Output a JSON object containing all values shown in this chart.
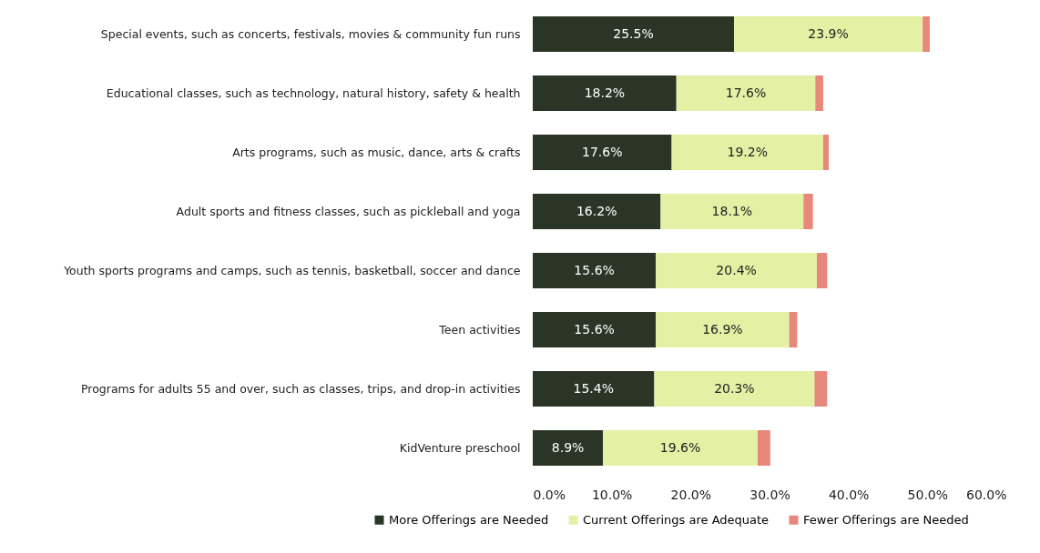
{
  "chart_data": {
    "type": "bar",
    "orientation": "horizontal",
    "stacked": true,
    "categories": [
      "Special events, such as concerts, festivals, movies & community fun runs",
      "Educational classes, such as technology, natural history, safety & health",
      "Arts programs, such as music, dance, arts & crafts",
      "Adult sports and fitness classes, such as pickleball and yoga",
      "Youth sports programs and camps, such as tennis, basketball, soccer and dance",
      "Teen activities",
      "Programs for adults 55 and over, such as classes, trips, and drop-in activities",
      "KidVenture preschool"
    ],
    "series": [
      {
        "name": "More Offerings are Needed",
        "color": "#2b3526",
        "values": [
          25.5,
          18.2,
          17.6,
          16.2,
          15.6,
          15.6,
          15.4,
          8.9
        ],
        "value_labels": [
          "25.5%",
          "18.2%",
          "17.6%",
          "16.2%",
          "15.6%",
          "15.6%",
          "15.4%",
          "8.9%"
        ]
      },
      {
        "name": "Current Offerings are Adequate",
        "color": "#e4f0a4",
        "values": [
          23.9,
          17.6,
          19.2,
          18.1,
          20.4,
          16.9,
          20.3,
          19.6
        ],
        "value_labels": [
          "23.9%",
          "17.6%",
          "19.2%",
          "18.1%",
          "20.4%",
          "16.9%",
          "20.3%",
          "19.6%"
        ]
      },
      {
        "name": "Fewer Offerings are Needed",
        "color": "#e8877c",
        "values": [
          0.9,
          1.0,
          0.7,
          1.2,
          1.3,
          1.0,
          1.6,
          1.6
        ]
      }
    ],
    "xlim": [
      0,
      60
    ],
    "xticks": [
      {
        "value": 0,
        "label": "0.0%"
      },
      {
        "value": 10,
        "label": "10.0%"
      },
      {
        "value": 20,
        "label": "20.0%"
      },
      {
        "value": 30,
        "label": "30.0%"
      },
      {
        "value": 40,
        "label": "40.0%"
      },
      {
        "value": 50,
        "label": "50.0%"
      },
      {
        "value": 60,
        "label": "60.0%"
      }
    ],
    "grid": false,
    "legend": "bottom"
  }
}
